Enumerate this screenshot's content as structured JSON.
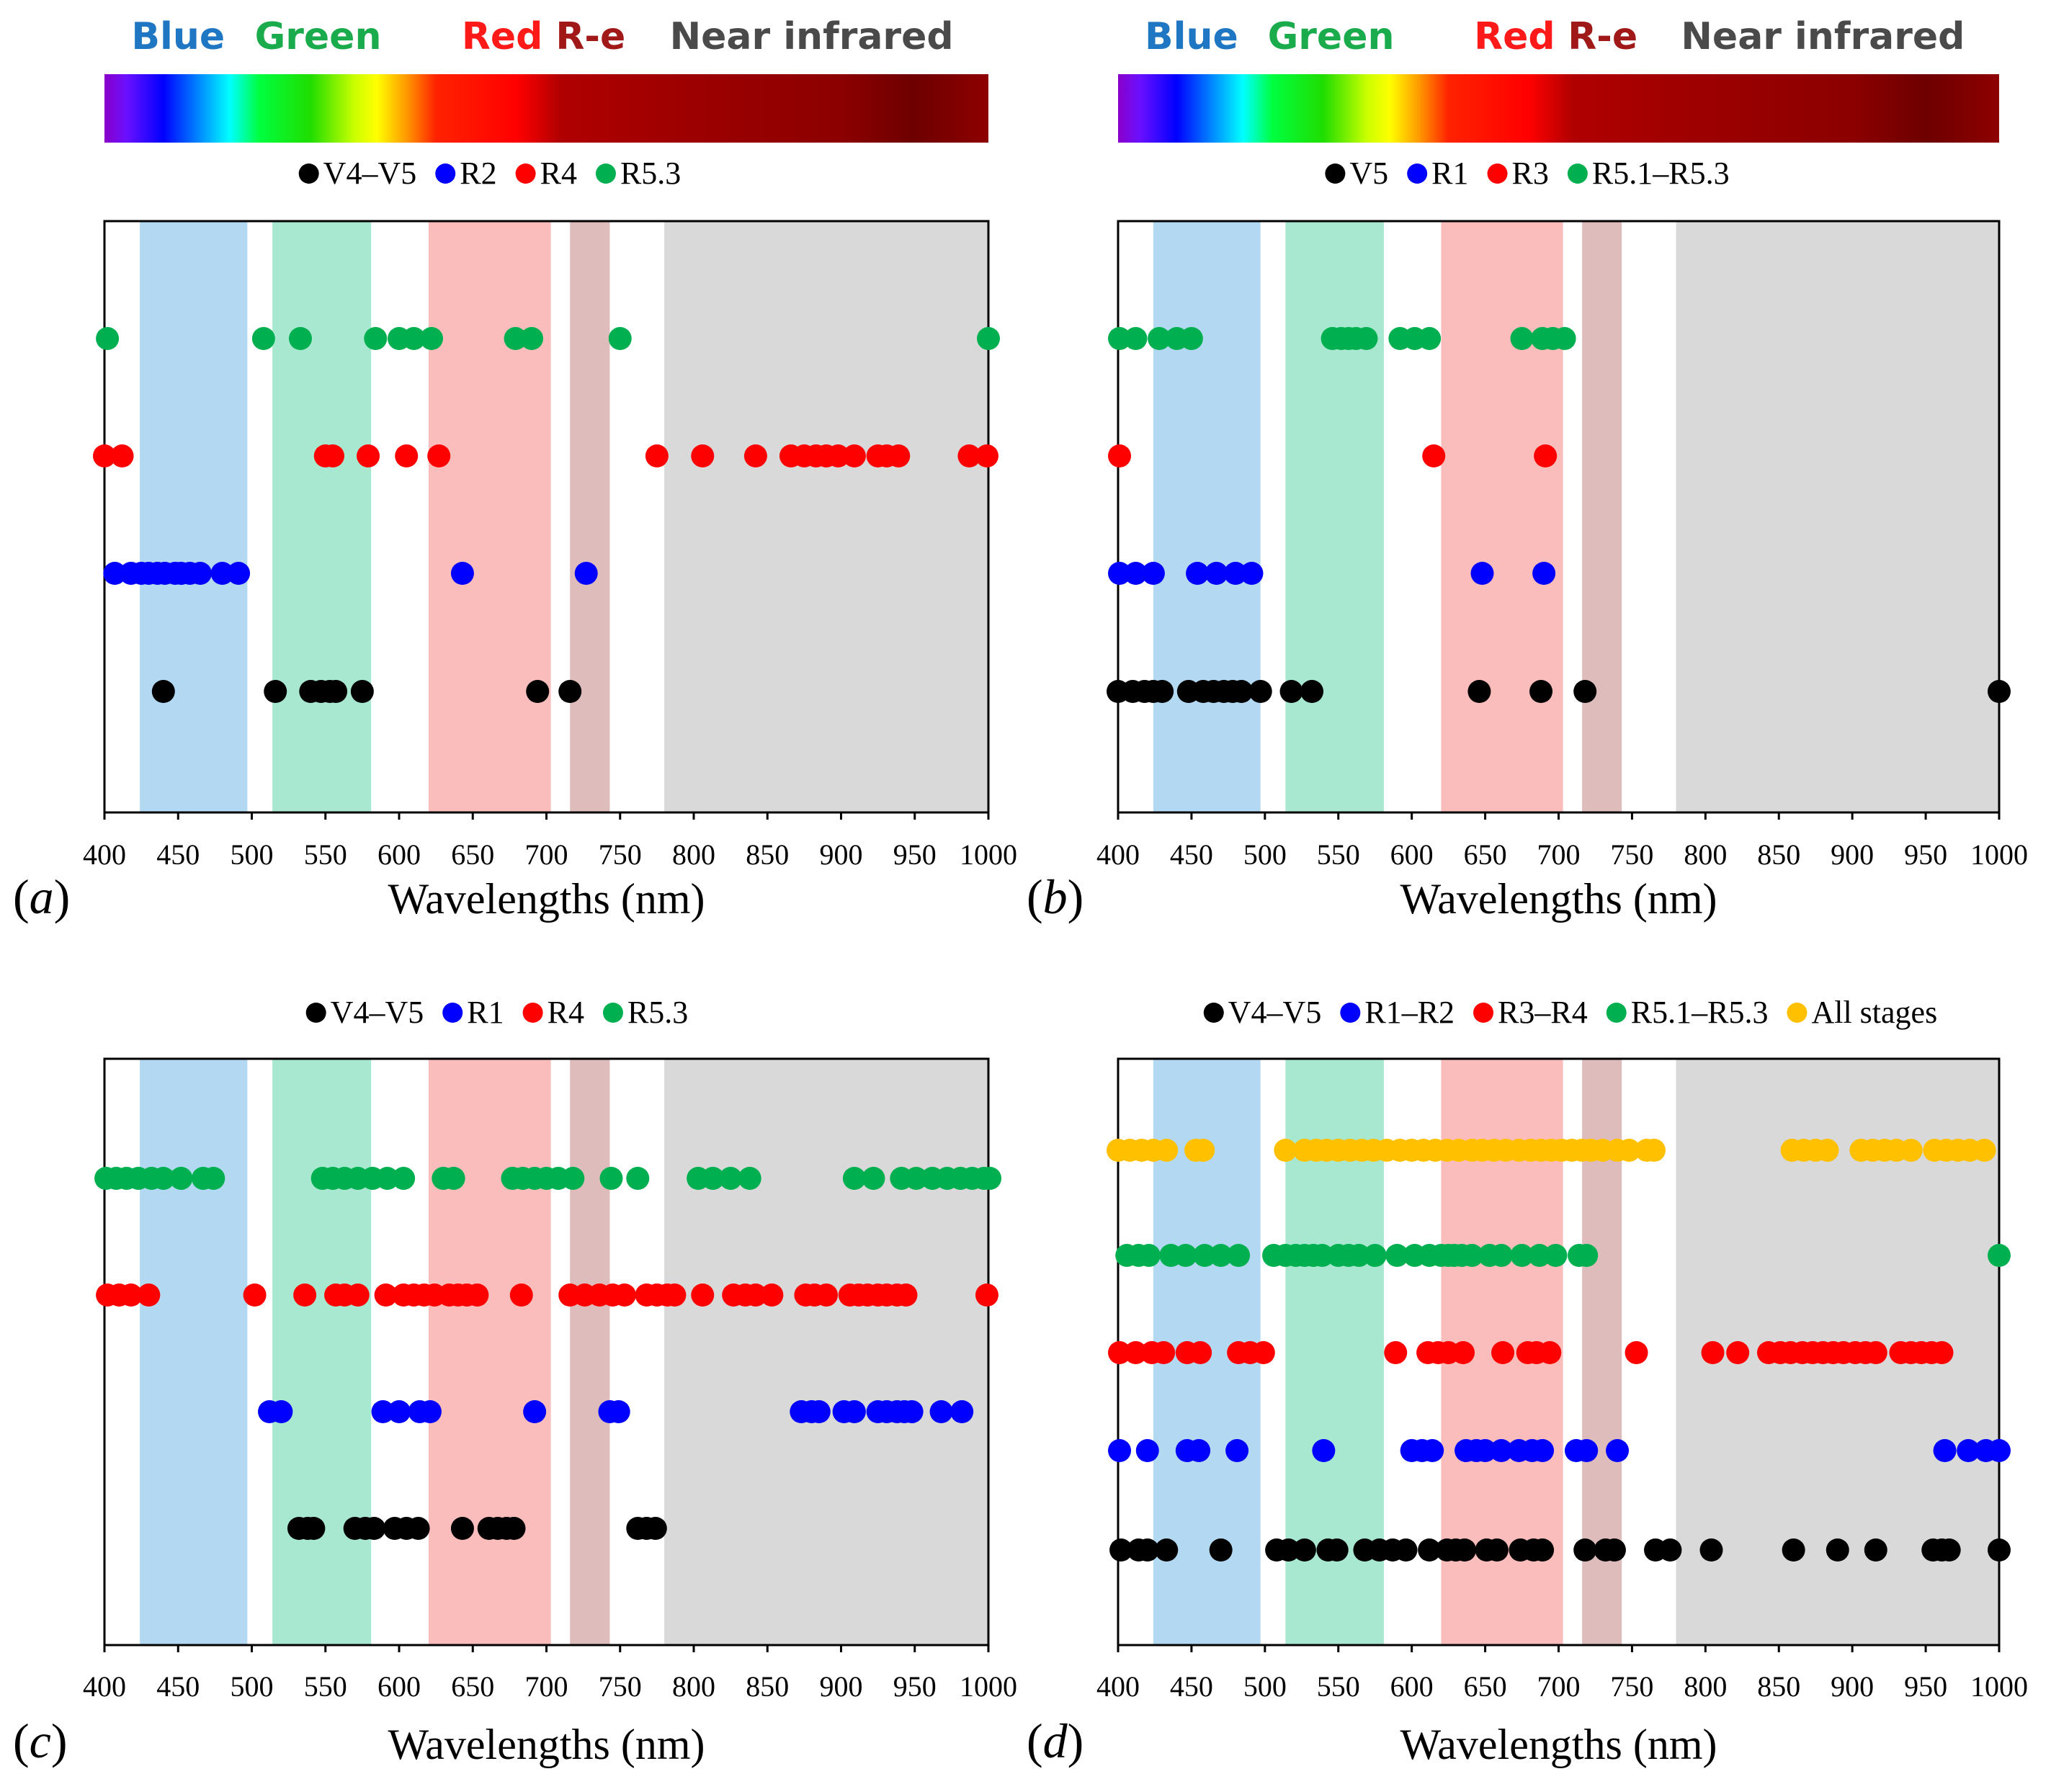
{
  "figure": {
    "spectrum": {
      "labels": [
        {
          "text": "Blue",
          "nm": 450,
          "color": "#1f77c4"
        },
        {
          "text": "Green",
          "nm": 545,
          "color": "#1aab4c"
        },
        {
          "text": "Red",
          "nm": 670,
          "color": "#ff1a1a"
        },
        {
          "text": "R-e",
          "nm": 730,
          "color": "#a01818"
        },
        {
          "text": "Near infrared",
          "nm": 880,
          "color": "#4a4a4a"
        }
      ],
      "stops": [
        {
          "nm": 400,
          "color": "#8a00c8"
        },
        {
          "nm": 415,
          "color": "#6a10ff"
        },
        {
          "nm": 440,
          "color": "#0000ff"
        },
        {
          "nm": 470,
          "color": "#00aaff"
        },
        {
          "nm": 485,
          "color": "#00ffff"
        },
        {
          "nm": 505,
          "color": "#00ff40"
        },
        {
          "nm": 540,
          "color": "#20dd00"
        },
        {
          "nm": 570,
          "color": "#ccff00"
        },
        {
          "nm": 585,
          "color": "#ffff00"
        },
        {
          "nm": 605,
          "color": "#ff9900"
        },
        {
          "nm": 625,
          "color": "#ff2200"
        },
        {
          "nm": 680,
          "color": "#ff0000"
        },
        {
          "nm": 710,
          "color": "#b00000"
        },
        {
          "nm": 780,
          "color": "#a00000"
        },
        {
          "nm": 900,
          "color": "#8c0000"
        },
        {
          "nm": 950,
          "color": "#6e0000"
        },
        {
          "nm": 1000,
          "color": "#8e0000"
        }
      ]
    },
    "bands": [
      {
        "name": "Blue",
        "from": 424,
        "to": 497,
        "color": "#b3d9f2"
      },
      {
        "name": "Green",
        "from": 514,
        "to": 581,
        "color": "#a8e8d0"
      },
      {
        "name": "Red",
        "from": 620,
        "to": 703,
        "color": "#fbbcbc"
      },
      {
        "name": "R-e",
        "from": 716,
        "to": 743,
        "color": "#dfbcbc"
      },
      {
        "name": "Near infrared",
        "from": 780,
        "to": 1000,
        "color": "#d9d9d9"
      }
    ],
    "axis": {
      "xlabel": "Wavelengths (nm)",
      "xlim": [
        400,
        1000
      ],
      "ticks": [
        400,
        450,
        500,
        550,
        600,
        650,
        700,
        750,
        800,
        850,
        900,
        950,
        1000
      ]
    }
  },
  "chart_data": [
    {
      "type": "scatter",
      "panel": "(a)",
      "xlabel": "Wavelengths (nm)",
      "xlim": [
        400,
        1000
      ],
      "series": [
        {
          "name": "V4–V5",
          "color": "#000000",
          "values": [
            440,
            516,
            540,
            547,
            553,
            557,
            575,
            694,
            716
          ]
        },
        {
          "name": "R2",
          "color": "#0000ff",
          "values": [
            407,
            418,
            425,
            430,
            436,
            441,
            448,
            452,
            458,
            465,
            480,
            491,
            643,
            727
          ]
        },
        {
          "name": "R4",
          "color": "#ff0000",
          "values": [
            400,
            412,
            550,
            555,
            579,
            605,
            627,
            775,
            806,
            842,
            866,
            875,
            883,
            890,
            898,
            909,
            925,
            931,
            939,
            987,
            999
          ]
        },
        {
          "name": "R5.3",
          "color": "#00b050",
          "values": [
            402,
            508,
            533,
            584,
            600,
            610,
            622,
            679,
            690,
            750,
            1000
          ]
        }
      ]
    },
    {
      "type": "scatter",
      "panel": "(b)",
      "xlabel": "Wavelengths (nm)",
      "xlim": [
        400,
        1000
      ],
      "series": [
        {
          "name": "V5",
          "color": "#000000",
          "values": [
            400,
            410,
            418,
            424,
            430,
            448,
            458,
            465,
            472,
            478,
            484,
            497,
            518,
            532,
            646,
            688,
            718,
            1000
          ]
        },
        {
          "name": "R1",
          "color": "#0000ff",
          "values": [
            401,
            412,
            424,
            454,
            467,
            480,
            491,
            648,
            690
          ]
        },
        {
          "name": "R3",
          "color": "#ff0000",
          "values": [
            401,
            615,
            691
          ]
        },
        {
          "name": "R5.1–R5.3",
          "color": "#00b050",
          "values": [
            401,
            412,
            428,
            440,
            450,
            546,
            552,
            557,
            562,
            569,
            592,
            602,
            612,
            675,
            689,
            696,
            704
          ]
        }
      ]
    },
    {
      "type": "scatter",
      "panel": "(c)",
      "xlabel": "Wavelengths (nm)",
      "xlim": [
        400,
        1000
      ],
      "series": [
        {
          "name": "V4–V5",
          "color": "#000000",
          "values": [
            532,
            538,
            542,
            570,
            577,
            583,
            597,
            605,
            613,
            643,
            661,
            667,
            673,
            678,
            762,
            768,
            774
          ]
        },
        {
          "name": "R1",
          "color": "#0000ff",
          "values": [
            512,
            520,
            589,
            600,
            614,
            621,
            692,
            743,
            749,
            873,
            880,
            885,
            902,
            909,
            925,
            931,
            938,
            943,
            948,
            968,
            982
          ]
        },
        {
          "name": "R4",
          "color": "#ff0000",
          "values": [
            402,
            410,
            418,
            430,
            502,
            536,
            557,
            563,
            572,
            591,
            603,
            610,
            617,
            624,
            634,
            640,
            646,
            653,
            683,
            716,
            726,
            736,
            745,
            753,
            768,
            775,
            782,
            787,
            806,
            827,
            835,
            842,
            853,
            876,
            882,
            890,
            906,
            912,
            918,
            925,
            931,
            938,
            944,
            999
          ]
        },
        {
          "name": "R5.3",
          "color": "#00b050",
          "values": [
            401,
            408,
            415,
            423,
            432,
            440,
            452,
            467,
            474,
            548,
            555,
            563,
            572,
            582,
            592,
            603,
            630,
            637,
            677,
            684,
            692,
            700,
            708,
            718,
            744,
            762,
            803,
            813,
            825,
            838,
            909,
            922,
            941,
            951,
            962,
            972,
            981,
            989,
            997,
            1001
          ]
        }
      ]
    },
    {
      "type": "scatter",
      "panel": "(d)",
      "xlabel": "Wavelengths (nm)",
      "xlim": [
        400,
        1000
      ],
      "series": [
        {
          "name": "V4–V5",
          "color": "#000000",
          "values": [
            402,
            414,
            420,
            433,
            470,
            508,
            516,
            527,
            543,
            549,
            568,
            578,
            587,
            596,
            612,
            624,
            630,
            636,
            651,
            658,
            674,
            683,
            689,
            718,
            732,
            738,
            766,
            776,
            804,
            860,
            890,
            916,
            955,
            961,
            966,
            1000
          ]
        },
        {
          "name": "R1–R2",
          "color": "#0000ff",
          "values": [
            401,
            420,
            447,
            455,
            481,
            540,
            600,
            607,
            614,
            637,
            644,
            650,
            661,
            673,
            682,
            689,
            712,
            719,
            740,
            963,
            979,
            991,
            1000
          ]
        },
        {
          "name": "R3–R4",
          "color": "#ff0000",
          "values": [
            401,
            412,
            423,
            431,
            447,
            456,
            482,
            490,
            499,
            589,
            611,
            618,
            625,
            635,
            662,
            679,
            685,
            694,
            753,
            805,
            822,
            843,
            851,
            858,
            866,
            873,
            880,
            887,
            894,
            902,
            909,
            916,
            933,
            940,
            947,
            954,
            961
          ]
        },
        {
          "name": "R5.1–R5.3",
          "color": "#00b050",
          "values": [
            406,
            414,
            421,
            436,
            446,
            459,
            470,
            482,
            506,
            514,
            521,
            527,
            533,
            539,
            550,
            557,
            564,
            575,
            590,
            602,
            612,
            620,
            625,
            629,
            634,
            641,
            653,
            661,
            675,
            687,
            698,
            714,
            719,
            1000
          ]
        },
        {
          "name": "All stages",
          "color": "#ffc000",
          "values": [
            400,
            408,
            416,
            424,
            433,
            453,
            458,
            514,
            527,
            535,
            542,
            550,
            558,
            566,
            574,
            583,
            592,
            600,
            608,
            616,
            624,
            632,
            641,
            648,
            656,
            664,
            673,
            681,
            688,
            695,
            702,
            709,
            716,
            722,
            730,
            740,
            748,
            760,
            765,
            859,
            867,
            875,
            883,
            906,
            914,
            922,
            930,
            940,
            956,
            964,
            972,
            980,
            990
          ]
        }
      ]
    }
  ]
}
